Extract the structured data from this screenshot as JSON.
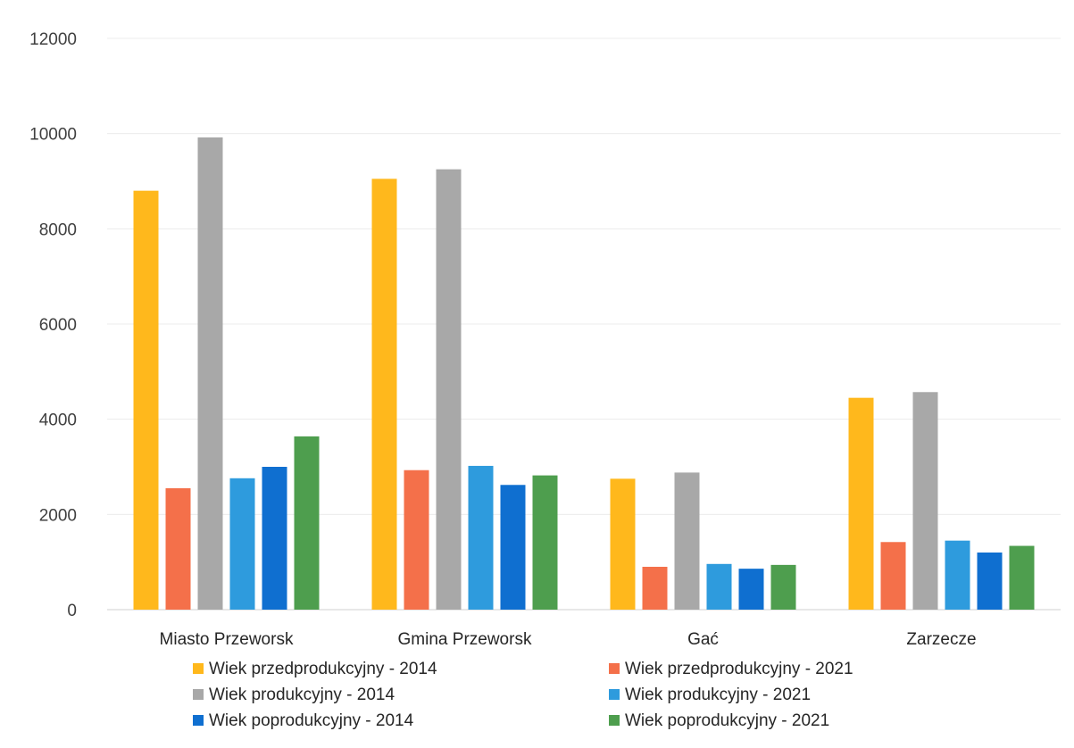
{
  "chart_data": {
    "type": "bar",
    "categories": [
      "Miasto Przeworsk",
      "Gmina Przeworsk",
      "Gać",
      "Zarzecze"
    ],
    "ylim": [
      0,
      12000
    ],
    "yticks": [
      "0",
      "2000",
      "4000",
      "6000",
      "8000",
      "10000",
      "12000"
    ],
    "grid": true,
    "legend_position": "bottom",
    "series": [
      {
        "name": "Wiek przedprodukcyjny - 2014",
        "color": "#FFB81C",
        "values": [
          8800,
          9050,
          2750,
          4450
        ]
      },
      {
        "name": "Wiek przedprodukcyjny - 2021",
        "color": "#F4704A",
        "values": [
          2550,
          2930,
          900,
          1420
        ]
      },
      {
        "name": "Wiek produkcyjny - 2014",
        "color": "#A8A8A8",
        "values": [
          9920,
          9250,
          2880,
          4570
        ]
      },
      {
        "name": "Wiek produkcyjny - 2021",
        "color": "#2E9BDD",
        "values": [
          2760,
          3020,
          960,
          1450
        ]
      },
      {
        "name": "Wiek poprodukcyjny - 2014",
        "color": "#0F6FD0",
        "values": [
          3000,
          2620,
          860,
          1200
        ]
      },
      {
        "name": "Wiek poprodukcyjny - 2021",
        "color": "#4E9E4E",
        "values": [
          3640,
          2820,
          940,
          1340
        ]
      }
    ]
  }
}
